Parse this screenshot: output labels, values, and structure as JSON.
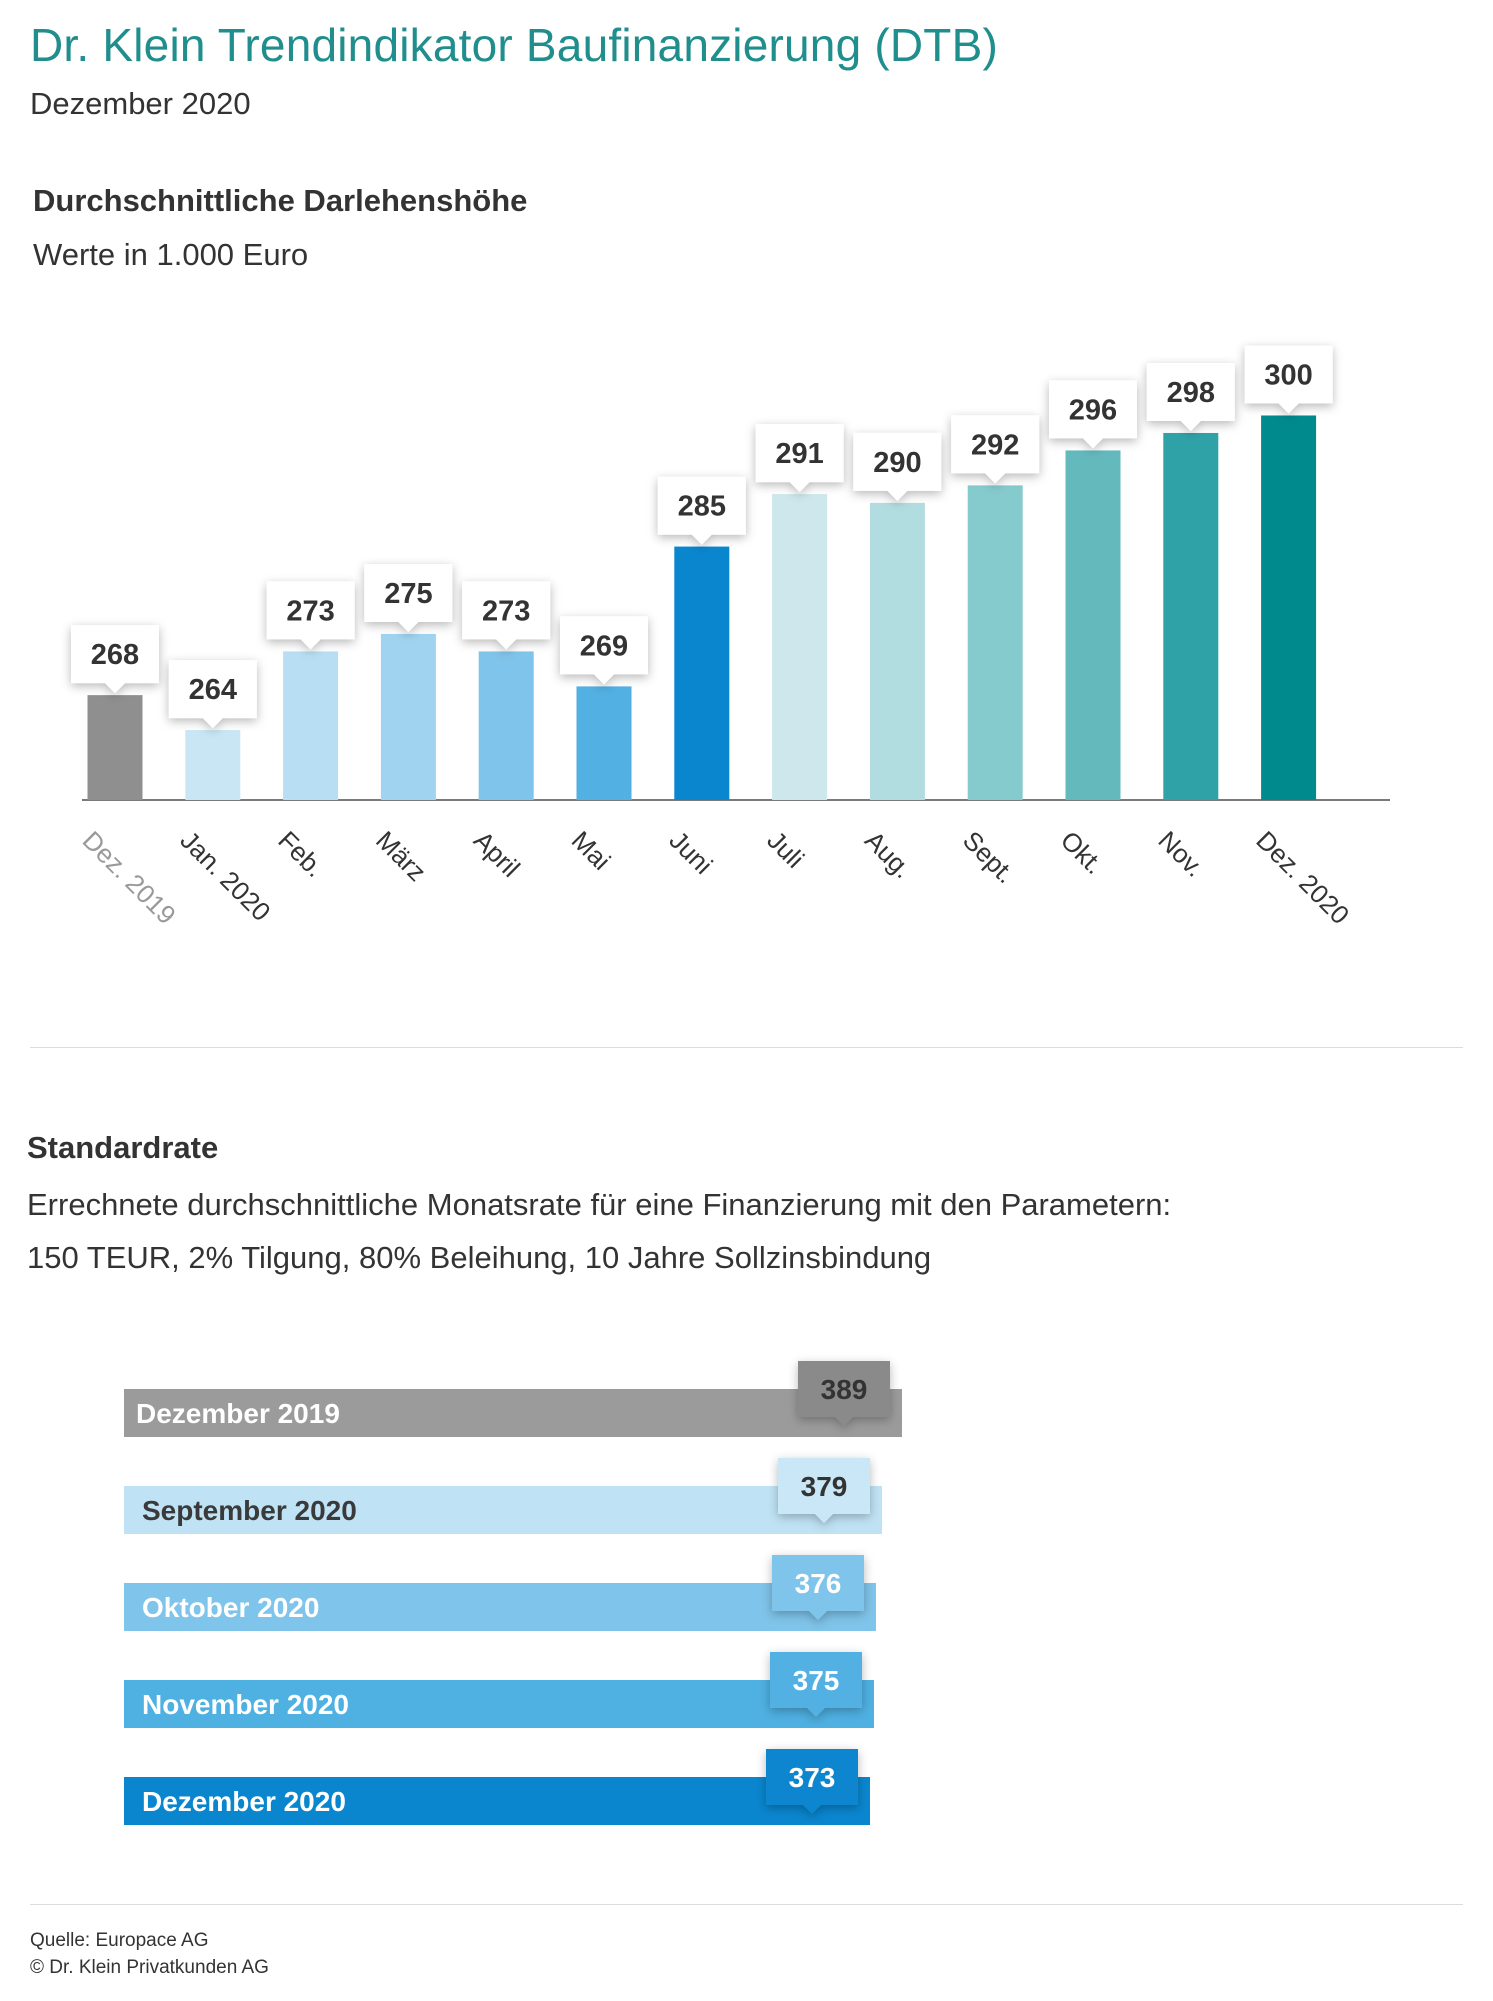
{
  "header": {
    "title": "Dr. Klein Trendindikator Baufinanzierung (DTB)",
    "subtitle": "Dezember 2020"
  },
  "chart_data": [
    {
      "type": "bar",
      "title": "Durchschnittliche Darlehenshöhe",
      "subtitle": "Werte in 1.000 Euro",
      "categories": [
        "Dez. 2019",
        "Jan. 2020",
        "Feb.",
        "März",
        "April",
        "Mai",
        "Juni",
        "Juli",
        "Aug.",
        "Sept.",
        "Okt.",
        "Nov.",
        "Dez. 2020"
      ],
      "values": [
        268,
        264,
        273,
        275,
        273,
        269,
        285,
        291,
        290,
        292,
        296,
        298,
        300
      ],
      "colors": [
        "#8f8f8f",
        "#c8e6f4",
        "#b7def3",
        "#9fd3ef",
        "#7fc4ea",
        "#52b0e2",
        "#0a86cf",
        "#cde7ec",
        "#b2dde0",
        "#85cacd",
        "#63b9bc",
        "#2fa2a8",
        "#008a8e"
      ],
      "label_colors": [
        "#999999",
        "#333333",
        "#333333",
        "#333333",
        "#333333",
        "#333333",
        "#333333",
        "#333333",
        "#333333",
        "#333333",
        "#333333",
        "#333333",
        "#333333"
      ],
      "ylim": [
        256,
        302
      ],
      "grid": false,
      "legend": "none"
    },
    {
      "type": "bar",
      "orientation": "horizontal",
      "title": "Standardrate",
      "description": [
        "Errechnete durchschnittliche Monatsrate für eine Finanzierung mit den Parametern:",
        "150 TEUR, 2% Tilgung, 80% Beleihung, 10 Jahre Sollzinsbindung"
      ],
      "categories": [
        "Dezember 2019",
        "September 2020",
        "Oktober 2020",
        "November 2020",
        "Dezember 2020"
      ],
      "values": [
        389,
        379,
        376,
        375,
        373
      ],
      "colors": [
        "#9b9b9b",
        "#bfe3f4",
        "#7fc4ea",
        "#4fb0e2",
        "#0a86cf"
      ],
      "text_colors": [
        "#ffffff",
        "#3a3a3a",
        "#ffffff",
        "#ffffff",
        "#ffffff"
      ],
      "callout_colors": [
        "#8a8a8a",
        "#c9e7f6",
        "#7fc4ea",
        "#52b0e2",
        "#0a86cf"
      ],
      "callout_text_colors": [
        "#333333",
        "#333333",
        "#ffffff",
        "#ffffff",
        "#ffffff"
      ],
      "grid": false,
      "legend": "none"
    }
  ],
  "footer": {
    "source": "Quelle: Europace AG",
    "copyright": "© Dr. Klein Privatkunden AG"
  }
}
